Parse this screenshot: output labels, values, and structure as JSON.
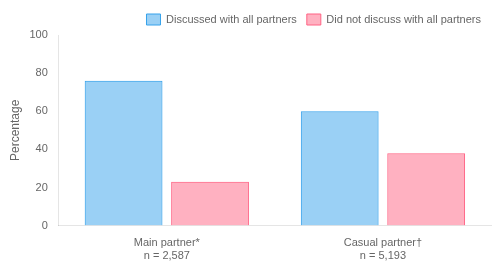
{
  "chart_data": {
    "type": "bar",
    "categories": [
      "Main partner*\nn = 2,587",
      "Casual partner†\nn = 5,193"
    ],
    "series": [
      {
        "name": "Discussed with all partners",
        "values": [
          76,
          60
        ]
      },
      {
        "name": "Did not discuss with all partners",
        "values": [
          23,
          38
        ]
      }
    ],
    "ylabel": "Percentage",
    "ylim": [
      0,
      100
    ],
    "yticks": [
      0,
      20,
      40,
      60,
      80,
      100
    ],
    "grid": false,
    "legend": "upper right"
  }
}
